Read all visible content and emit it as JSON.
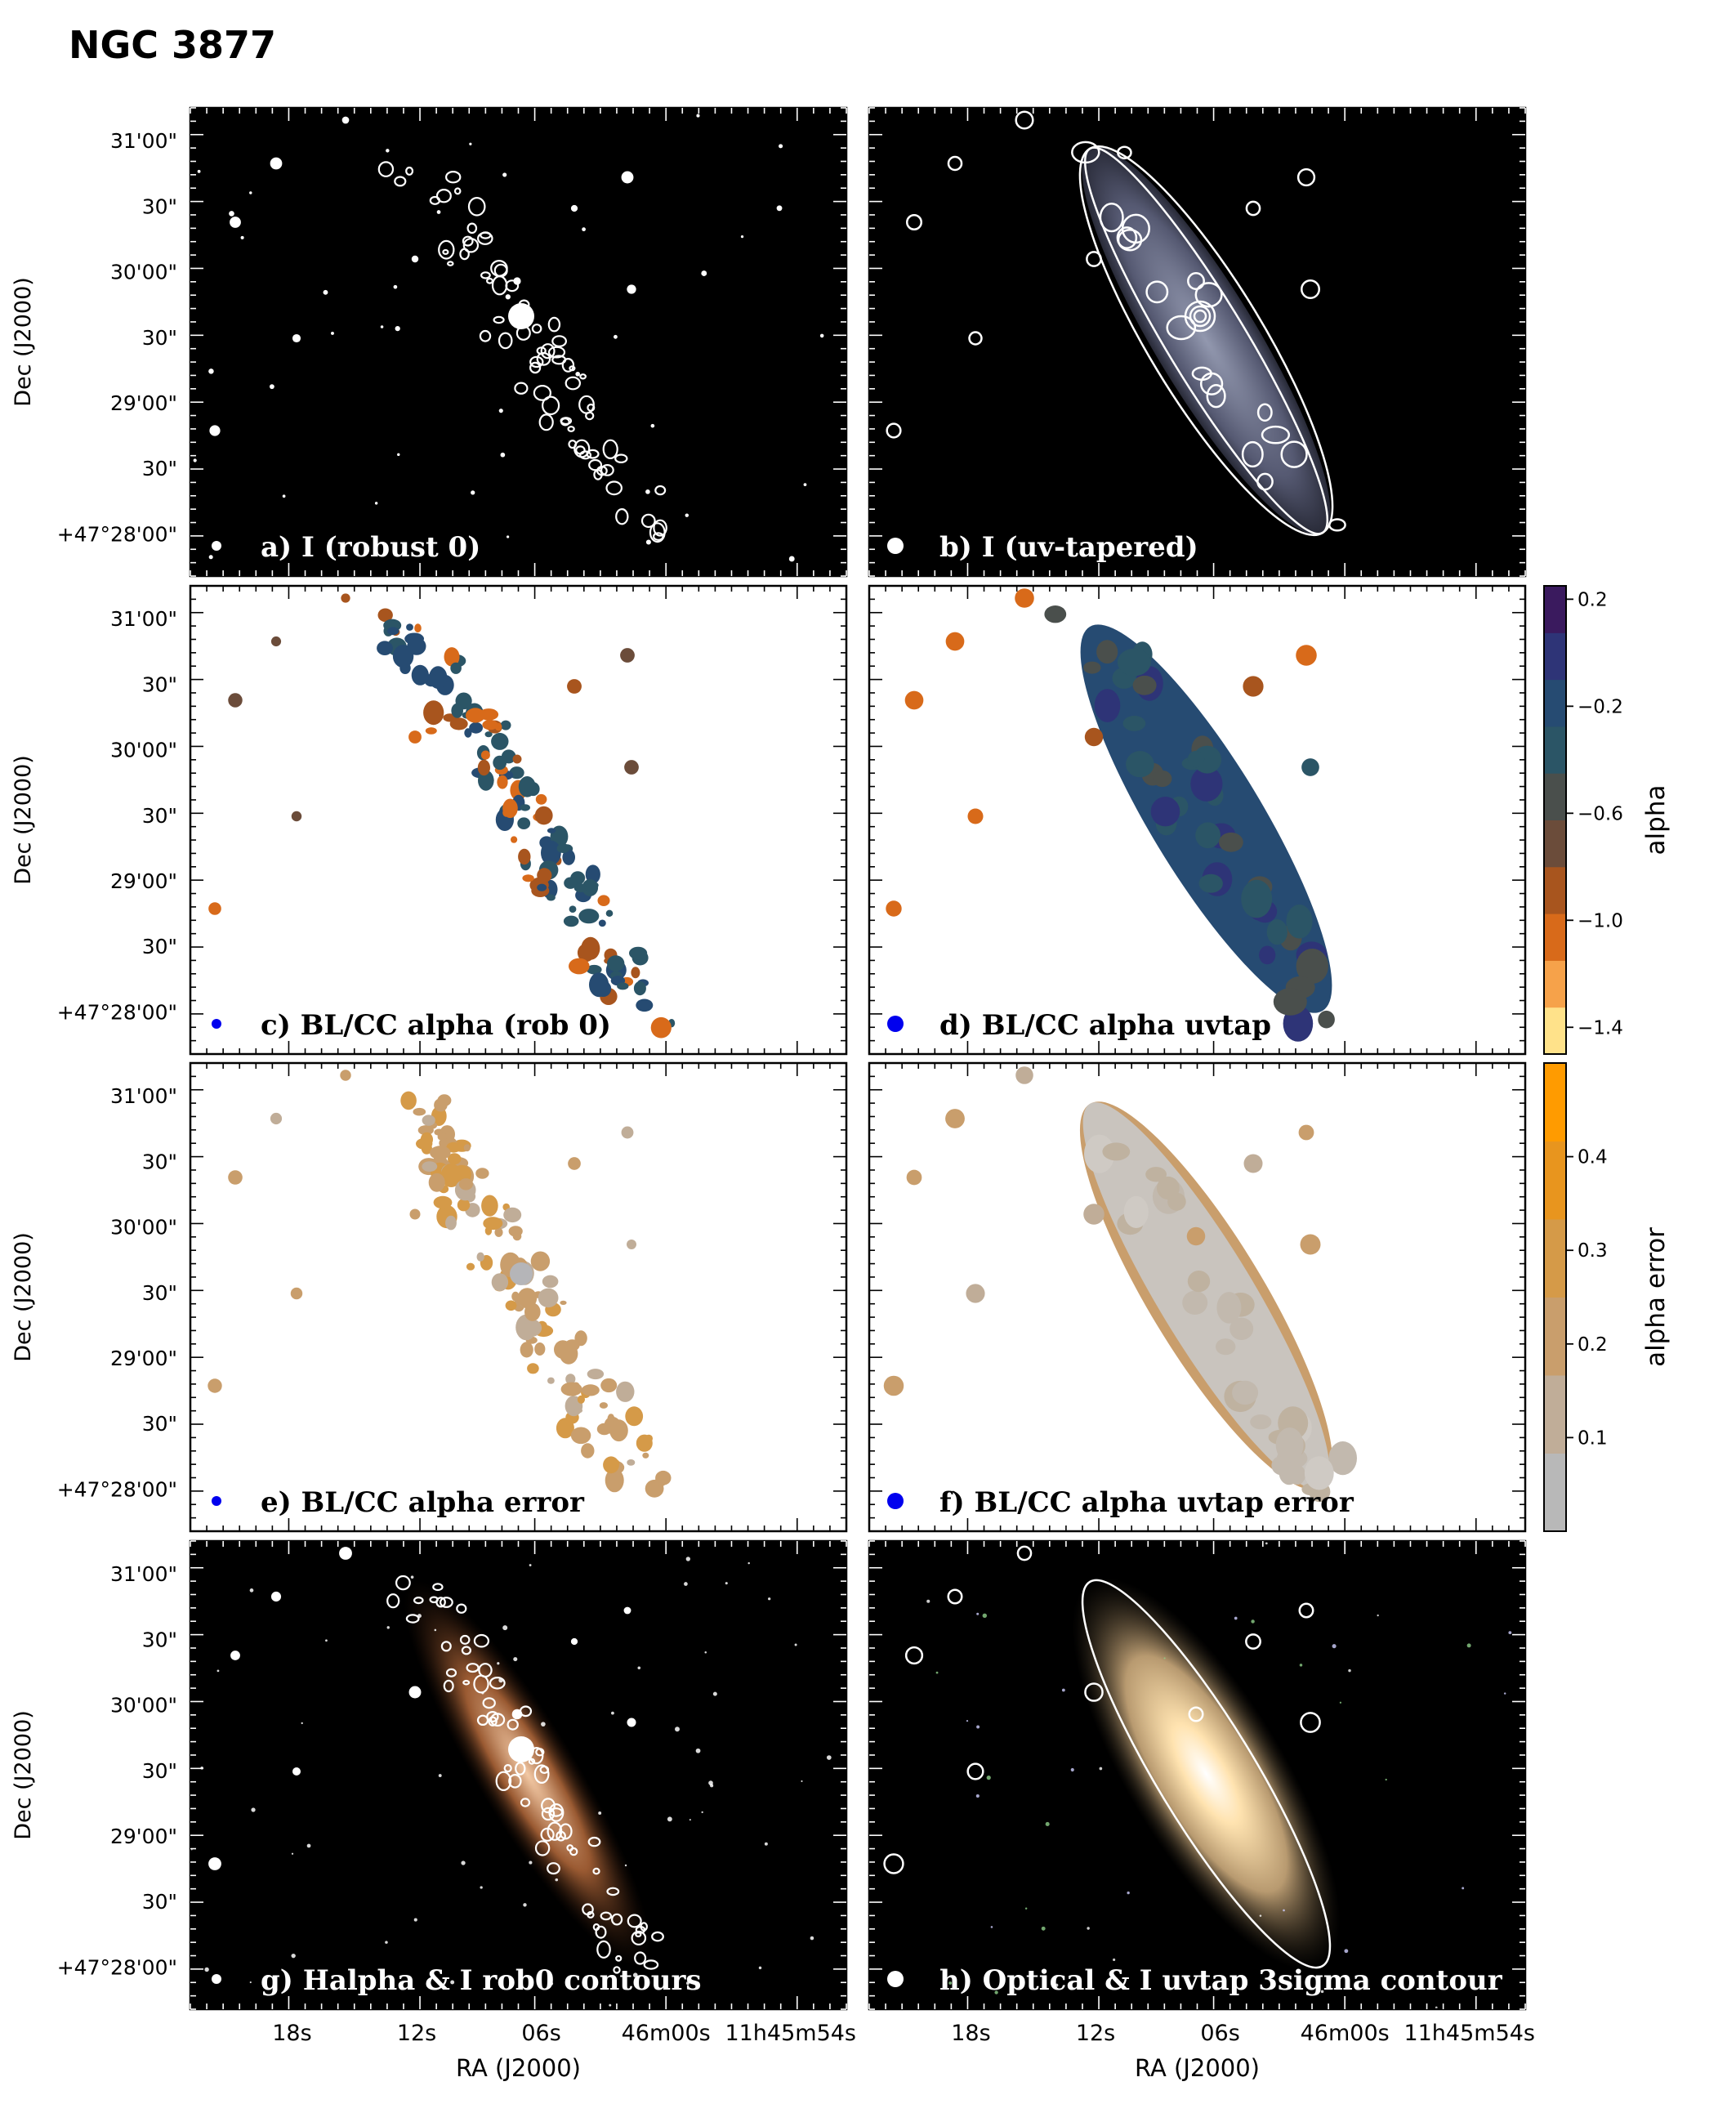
{
  "figure": {
    "title": "NGC 3877",
    "xlabel": "RA (J2000)",
    "ylabel": "Dec (J2000)",
    "xticks": [
      "18s",
      "12s",
      "06s",
      "46m00s",
      "11h45m54s"
    ],
    "yticks": [
      "31'00\"",
      "30\"",
      "30'00\"",
      "30\"",
      "29'00\"",
      "30\"",
      "+47°28'00\""
    ]
  },
  "panels": [
    {
      "id": "a",
      "label": "a) I (robust 0)",
      "style": "dark-contours",
      "beam_color": "#ffffff",
      "beam": "small"
    },
    {
      "id": "b",
      "label": "b) I (uv-tapered)",
      "style": "dark-smooth",
      "beam_color": "#ffffff",
      "beam": "large"
    },
    {
      "id": "c",
      "label": "c) BL/CC alpha (rob 0)",
      "style": "alpha-patchy",
      "beam_color": "#0000ee",
      "beam": "small"
    },
    {
      "id": "d",
      "label": "d) BL/CC alpha uvtap",
      "style": "alpha-smooth",
      "beam_color": "#0000ee",
      "beam": "large"
    },
    {
      "id": "e",
      "label": "e)  BL/CC alpha error",
      "style": "err-patchy",
      "beam_color": "#0000ee",
      "beam": "small"
    },
    {
      "id": "f",
      "label": "f) BL/CC alpha uvtap error",
      "style": "err-smooth",
      "beam_color": "#0000ee",
      "beam": "large"
    },
    {
      "id": "g",
      "label": "g) Halpha & I rob0 contours",
      "style": "halpha",
      "beam_color": "#ffffff",
      "beam": "small"
    },
    {
      "id": "h",
      "label": "h) Optical & I uvtap 3sigma contour",
      "style": "optical",
      "beam_color": "#ffffff",
      "beam": "large"
    }
  ],
  "colorbars": [
    {
      "id": "alpha",
      "label": "alpha",
      "ticks": [
        "0.2",
        "−0.2",
        "−0.6",
        "−1.0",
        "−1.4"
      ],
      "tick_values": [
        0.2,
        -0.2,
        -0.6,
        -1.0,
        -1.4
      ],
      "range": [
        -1.5,
        0.25
      ],
      "colors": [
        "#ffe28a",
        "#f6a24a",
        "#d86a1a",
        "#a8551e",
        "#6b4c3a",
        "#4a4f4c",
        "#2b5566",
        "#264b72",
        "#2e3477",
        "#3a1a5e"
      ]
    },
    {
      "id": "error",
      "label": "alpha error",
      "ticks": [
        "0.4",
        "0.3",
        "0.2",
        "0.1"
      ],
      "tick_values": [
        0.4,
        0.3,
        0.2,
        0.1
      ],
      "range": [
        0.0,
        0.5
      ],
      "colors": [
        "#b8b8b8",
        "#c0ad98",
        "#c99e6c",
        "#d59a48",
        "#e8951e",
        "#ff9b00"
      ]
    }
  ]
}
